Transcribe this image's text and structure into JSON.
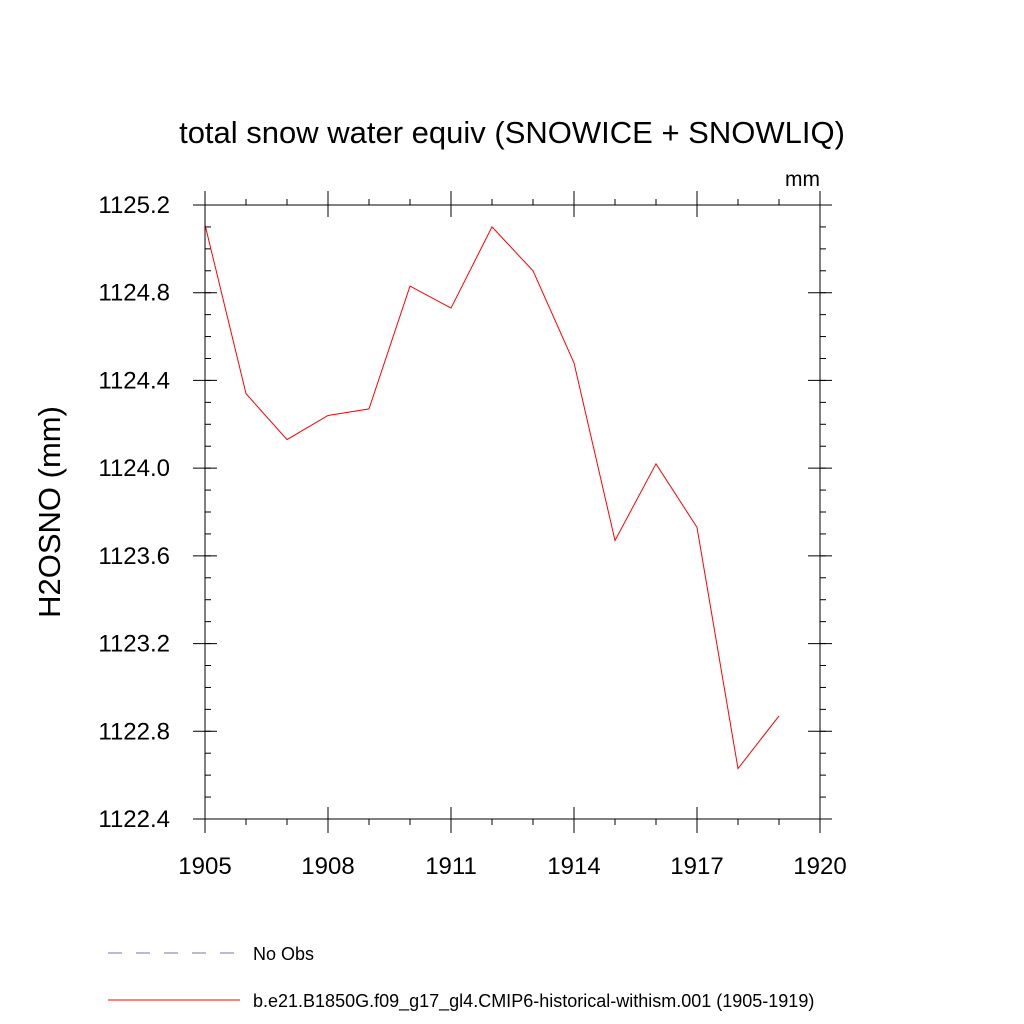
{
  "chart_data": {
    "type": "line",
    "title": "total snow water equiv (SNOWICE + SNOWLIQ)",
    "units_label": "mm",
    "xlabel": "",
    "ylabel": "H2OSNO  (mm)",
    "xlim": [
      1905,
      1920
    ],
    "ylim": [
      1122.4,
      1125.2
    ],
    "x_ticks": [
      1905,
      1908,
      1911,
      1914,
      1917,
      1920
    ],
    "y_ticks": [
      1122.4,
      1122.8,
      1123.2,
      1123.6,
      1124.0,
      1124.4,
      1124.8,
      1125.2
    ],
    "y_tick_labels": [
      "1122.4",
      "1122.8",
      "1123.2",
      "1123.6",
      "1124.0",
      "1124.4",
      "1124.8",
      "1125.2"
    ],
    "y_minor_step": 0.1,
    "x_minor_step": 1,
    "grid": false,
    "legend_placement": "bottom",
    "series": [
      {
        "name": "b.e21.B1850G.f09_g17_gl4.CMIP6-historical-withism.001 (1905-1919)",
        "color": "#ff0000",
        "style": "solid",
        "x": [
          1905,
          1906,
          1907,
          1908,
          1909,
          1910,
          1911,
          1912,
          1913,
          1914,
          1915,
          1916,
          1917,
          1918,
          1919
        ],
        "y": [
          1125.11,
          1124.34,
          1124.13,
          1124.24,
          1124.27,
          1124.83,
          1124.73,
          1125.1,
          1124.9,
          1124.48,
          1123.67,
          1124.02,
          1123.73,
          1122.63,
          1122.87
        ]
      }
    ],
    "legend": [
      {
        "label": "No Obs",
        "color": "#7b6fb0",
        "style": "dashed"
      },
      {
        "label": "b.e21.B1850G.f09_g17_gl4.CMIP6-historical-withism.001 (1905-1919)",
        "color": "#ff0000",
        "style": "solid"
      }
    ]
  }
}
